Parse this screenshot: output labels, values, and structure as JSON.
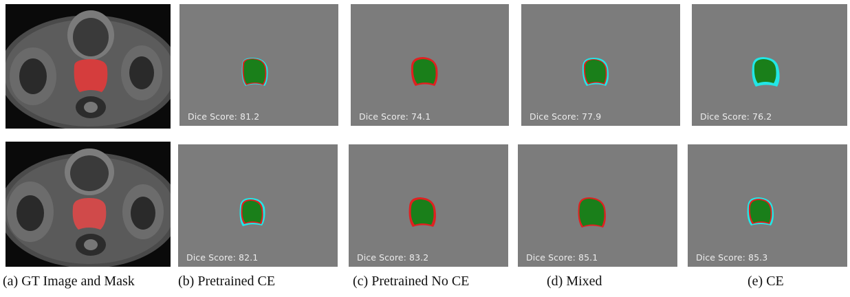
{
  "colors": {
    "background": "#7c7c7c",
    "overlap": "#1a7f1a",
    "false_positive": "#e02020",
    "false_negative": "#22e6e6",
    "gt_mask": "#e23a3a"
  },
  "rows": [
    {
      "gt_image": "pelvic-mri-with-prostate-mask",
      "panels": [
        {
          "dice_label": "Dice Score: 81.2"
        },
        {
          "dice_label": "Dice Score: 74.1"
        },
        {
          "dice_label": "Dice Score: 77.9"
        },
        {
          "dice_label": "Dice Score: 76.2"
        }
      ]
    },
    {
      "gt_image": "pelvic-mri-with-prostate-mask",
      "panels": [
        {
          "dice_label": "Dice Score: 82.1"
        },
        {
          "dice_label": "Dice Score: 83.2"
        },
        {
          "dice_label": "Dice Score: 85.1"
        },
        {
          "dice_label": "Dice Score: 85.3"
        }
      ]
    }
  ],
  "captions": [
    "(a) GT Image and Mask",
    "(b) Pretrained CE",
    "(c) Pretrained No CE",
    "(d) Mixed",
    "(e) CE"
  ]
}
